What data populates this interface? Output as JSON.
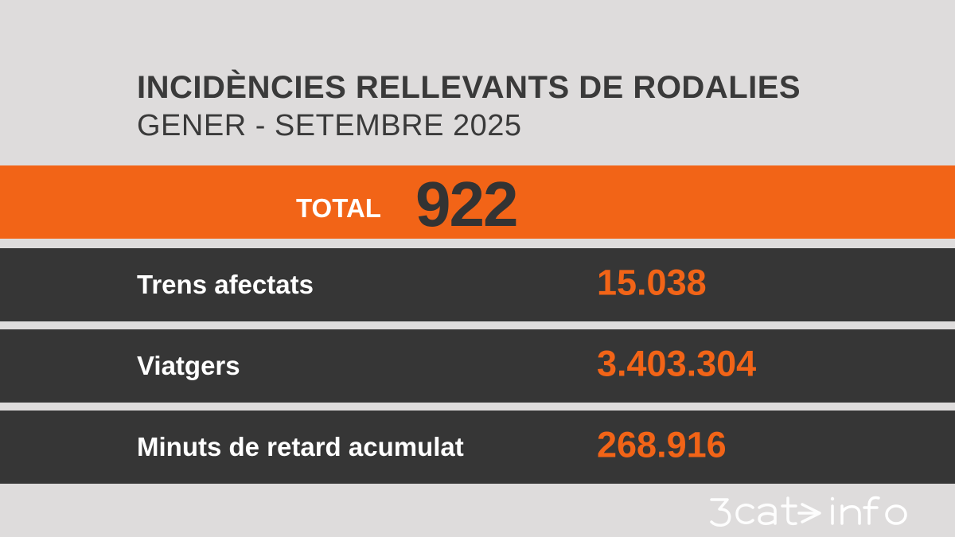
{
  "header": {
    "title": "INCIDÈNCIES RELLEVANTS DE RODALIES",
    "subtitle": "GENER - SETEMBRE 2025"
  },
  "total": {
    "label": "TOTAL",
    "value": "922"
  },
  "rows": [
    {
      "label": "Trens afectats",
      "value": "15.038"
    },
    {
      "label": "Viatgers",
      "value": "3.403.304"
    },
    {
      "label": "Minuts de retard acumulat",
      "value": "268.916"
    }
  ],
  "logo": {
    "text": "3cat info",
    "icon": "3cat-info-logo"
  },
  "colors": {
    "background": "#dedcdc",
    "accent": "#f26417",
    "dark_row": "#363636",
    "text_dark": "#3a3a3a"
  }
}
